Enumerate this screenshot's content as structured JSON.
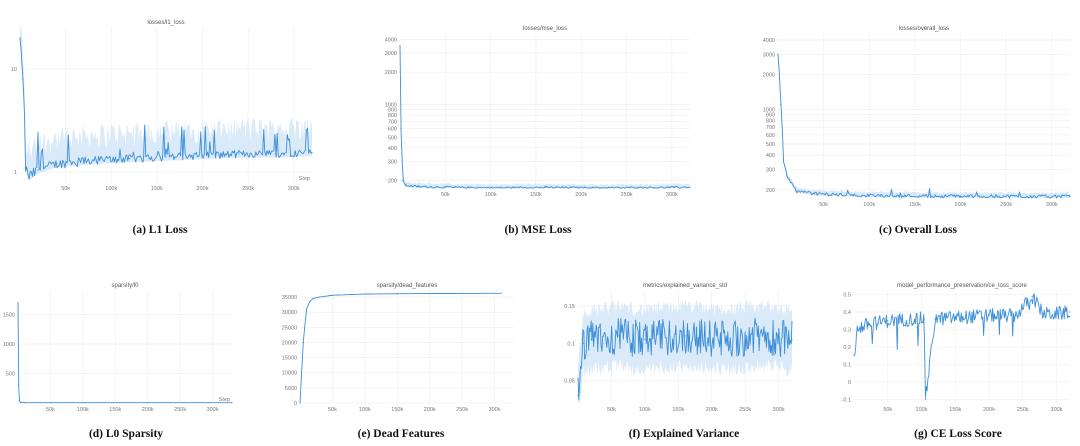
{
  "captions": [
    "(a) L1 Loss",
    "(b) MSE Loss",
    "(c) Overall Loss",
    "(d) L0 Sparsity",
    "(e) Dead Features",
    "(f) Explained Variance",
    "(g) CE Loss Score"
  ],
  "chart_data": [
    {
      "type": "line",
      "title": "losses/l1_loss",
      "xlabel": "Step",
      "x_ticks": [
        "50k",
        "100k",
        "150k",
        "200k",
        "250k",
        "300k"
      ],
      "y_ticks": [
        "10",
        "1"
      ],
      "yscale": "log",
      "xlim": [
        0,
        320000
      ],
      "ylim": [
        0.8,
        25
      ],
      "x": [
        0,
        3000,
        6000,
        10000,
        20000,
        40000,
        80000,
        120000,
        160000,
        200000,
        240000,
        280000,
        320000
      ],
      "y": [
        20,
        8,
        1.1,
        0.9,
        1.05,
        1.2,
        1.3,
        1.35,
        1.4,
        1.45,
        1.5,
        1.5,
        1.55
      ],
      "y_spikes_max": 3.0,
      "line_color": "#3b8fd8",
      "band_color": "#cfe3f7",
      "grid": true
    },
    {
      "type": "line",
      "title": "losses/mse_loss",
      "x_ticks": [
        "50k",
        "100k",
        "150k",
        "200k",
        "250k",
        "300k"
      ],
      "y_ticks": [
        "4000",
        "3000",
        "2000",
        "1000",
        "900",
        "800",
        "700",
        "600",
        "500",
        "400",
        "300",
        "200"
      ],
      "yscale": "log",
      "xlim": [
        0,
        320000
      ],
      "ylim": [
        170,
        4500
      ],
      "x": [
        0,
        1000,
        3000,
        6000,
        20000,
        60000,
        100000,
        160000,
        220000,
        280000,
        320000
      ],
      "y": [
        3500,
        600,
        200,
        180,
        175,
        172,
        170,
        172,
        170,
        171,
        173
      ],
      "line_color": "#3b8fd8",
      "band_color": "#cfe3f7",
      "grid": true
    },
    {
      "type": "line",
      "title": "losses/overall_loss",
      "x_ticks": [
        "50k",
        "100k",
        "150k",
        "200k",
        "250k",
        "300k"
      ],
      "y_ticks": [
        "4000",
        "3000",
        "2000",
        "1000",
        "900",
        "800",
        "700",
        "600",
        "500",
        "400",
        "300",
        "200"
      ],
      "yscale": "log",
      "xlim": [
        0,
        320000
      ],
      "ylim": [
        170,
        4500
      ],
      "x": [
        0,
        3000,
        6000,
        10000,
        20000,
        40000,
        80000,
        120000,
        160000,
        200000,
        240000,
        280000,
        320000
      ],
      "y": [
        3000,
        1100,
        350,
        260,
        195,
        185,
        180,
        178,
        177,
        176,
        176,
        175,
        176
      ],
      "line_color": "#3b8fd8",
      "band_color": "#cfe3f7",
      "grid": true
    },
    {
      "type": "line",
      "title": "sparsity/l0",
      "xlabel": "Step",
      "x_ticks": [
        "50k",
        "100k",
        "150k",
        "200k",
        "250k",
        "300k"
      ],
      "y_ticks": [
        "1500",
        "1000",
        "500"
      ],
      "xlim": [
        0,
        330000
      ],
      "ylim": [
        0,
        1900
      ],
      "x": [
        0,
        1000,
        2000,
        4000,
        10000,
        50000,
        100000,
        200000,
        330000
      ],
      "y": [
        1700,
        300,
        40,
        10,
        5,
        5,
        5,
        5,
        5
      ],
      "line_color": "#3b8fd8",
      "grid": true
    },
    {
      "type": "line",
      "title": "sparsity/dead_features",
      "x_ticks": [
        "50k",
        "100k",
        "150k",
        "200k",
        "250k",
        "300k"
      ],
      "y_ticks": [
        "35000",
        "30000",
        "25000",
        "20000",
        "15000",
        "10000",
        "5000",
        "0"
      ],
      "xlim": [
        0,
        330000
      ],
      "ylim": [
        0,
        37000
      ],
      "x": [
        0,
        5000,
        10000,
        15000,
        20000,
        30000,
        50000,
        100000,
        150000,
        200000,
        250000,
        310000
      ],
      "y": [
        0,
        20000,
        31000,
        33500,
        34500,
        35000,
        35600,
        36000,
        36100,
        36150,
        36200,
        36250
      ],
      "line_color": "#3b8fd8",
      "grid": true
    },
    {
      "type": "line",
      "title": "metrics/explained_variance_std",
      "x_ticks": [
        "50k",
        "100k",
        "150k",
        "200k",
        "250k",
        "300k"
      ],
      "y_ticks": [
        "0.15",
        "0.1",
        "0.05"
      ],
      "xlim": [
        0,
        320000
      ],
      "ylim": [
        0.02,
        0.17
      ],
      "x": [
        0,
        3000,
        8000,
        20000,
        60000,
        100000,
        160000,
        220000,
        280000,
        320000
      ],
      "y": [
        0.03,
        0.06,
        0.1,
        0.105,
        0.11,
        0.105,
        0.11,
        0.105,
        0.11,
        0.105
      ],
      "line_color": "#3b8fd8",
      "band_color": "#cfe3f7",
      "grid": true
    },
    {
      "type": "line",
      "title": "model_performance_preservation/ce_loss_score",
      "x_ticks": [
        "50k",
        "100k",
        "150k",
        "200k",
        "250k",
        "300k"
      ],
      "y_ticks": [
        "0.5",
        "0.4",
        "0.3",
        "0.2",
        "0.1",
        "0",
        "-0.1"
      ],
      "xlim": [
        0,
        320000
      ],
      "ylim": [
        -0.12,
        0.52
      ],
      "x": [
        0,
        5000,
        20000,
        50000,
        90000,
        104000,
        106000,
        120000,
        160000,
        200000,
        240000,
        264000,
        280000,
        300000,
        320000
      ],
      "y": [
        0.15,
        0.3,
        0.33,
        0.35,
        0.36,
        0.36,
        -0.1,
        0.36,
        0.37,
        0.38,
        0.38,
        0.49,
        0.39,
        0.39,
        0.4
      ],
      "line_color": "#3b8fd8",
      "grid": true
    }
  ]
}
